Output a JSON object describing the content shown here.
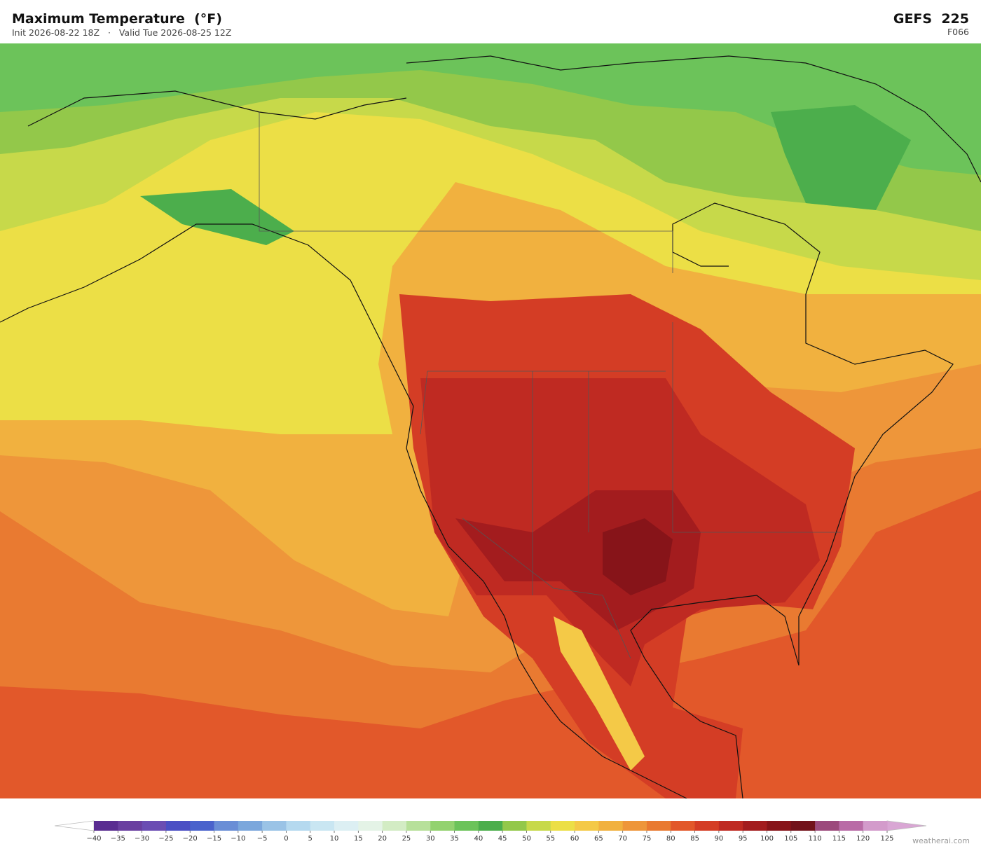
{
  "header": {
    "title": "Maximum Temperature  (°F)",
    "subtitle": "Init 2026-08-22 18Z   ·   Valid Tue 2026-08-25 12Z",
    "model": "GEFS  225",
    "forecast_hour": "F066"
  },
  "colorbar": {
    "ticks": [
      {
        "value": -40,
        "label": "−40"
      },
      {
        "value": -35,
        "label": "−35"
      },
      {
        "value": -30,
        "label": "−30"
      },
      {
        "value": -25,
        "label": "−25"
      },
      {
        "value": -20,
        "label": "−20"
      },
      {
        "value": -15,
        "label": "−15"
      },
      {
        "value": -10,
        "label": "−10"
      },
      {
        "value": -5,
        "label": "−5"
      },
      0,
      5,
      10,
      15,
      20,
      25,
      30,
      35,
      40,
      45,
      50,
      55,
      60,
      65,
      70,
      75,
      80,
      85,
      90,
      95,
      100,
      105,
      110,
      115,
      120,
      125
    ],
    "colors": [
      "#5a2d91",
      "#6a3fa0",
      "#6b4db3",
      "#4b4fc4",
      "#4a63cc",
      "#6a8ed6",
      "#7ba7dc",
      "#9ac3e6",
      "#b5d9ef",
      "#c9e6f2",
      "#dceff3",
      "#e4f3e6",
      "#d3ecc4",
      "#b7e09a",
      "#93d26f",
      "#6cc35a",
      "#4cae4c",
      "#93c84a",
      "#c7d94a",
      "#ecdf46",
      "#f4c947",
      "#f1b13f",
      "#ee963a",
      "#e97a31",
      "#e2582a",
      "#d43d25",
      "#bf2a22",
      "#a31c1e",
      "#871419",
      "#72121a",
      "#9c4a7c",
      "#b96ba6",
      "#d39bcb"
    ],
    "under_color": "#ffffff",
    "over_color": "#d9a6d4"
  },
  "watermark": "weatherai.com"
}
